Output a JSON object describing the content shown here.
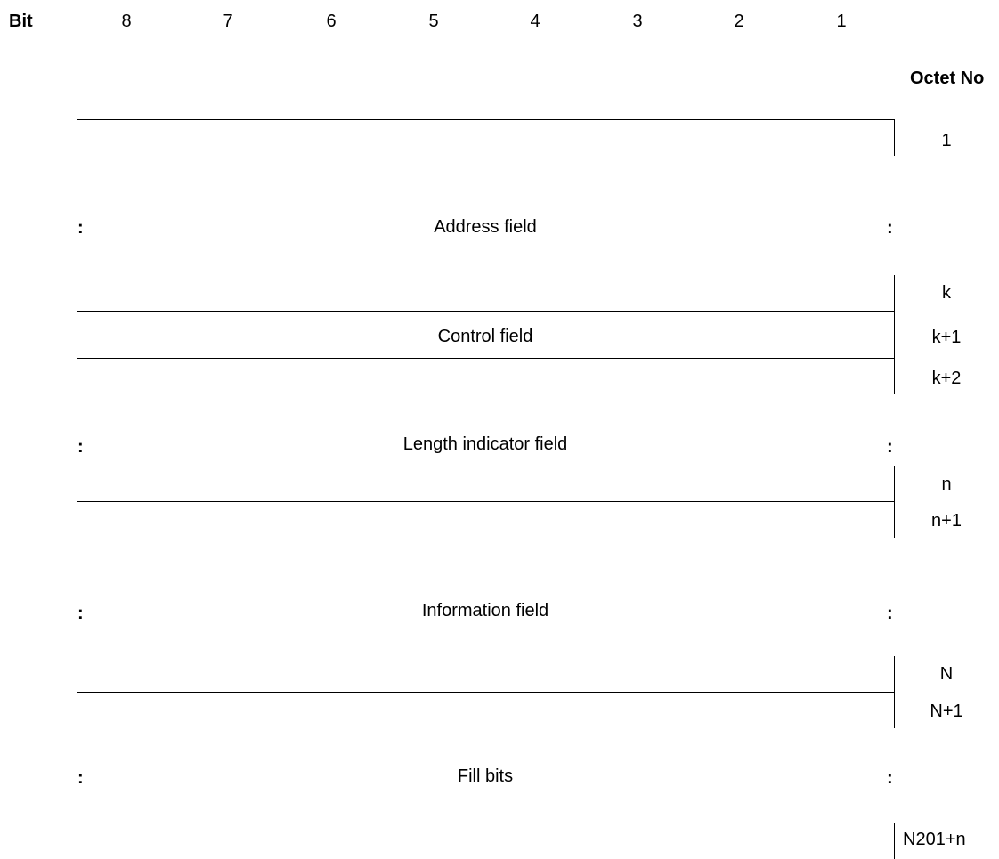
{
  "header": {
    "bit_label": "Bit",
    "bits": [
      "8",
      "7",
      "6",
      "5",
      "4",
      "3",
      "2",
      "1"
    ],
    "octet_label": "Octet No"
  },
  "fields": {
    "address": "Address field",
    "control": "Control field",
    "length": "Length indicator field",
    "information": "Information field",
    "fill": "Fill bits"
  },
  "ellipsis": ":",
  "octets": {
    "o1": "1",
    "k": "k",
    "k1": "k+1",
    "k2": "k+2",
    "n": "n",
    "n1": "n+1",
    "N": "N",
    "N1": "N+1",
    "last": "N201+n"
  }
}
